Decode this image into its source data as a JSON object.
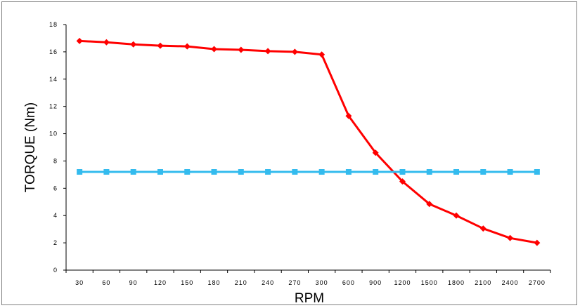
{
  "chart_data": {
    "type": "line",
    "title": "",
    "xlabel": "RPM",
    "ylabel": "TORQUE (Nm)",
    "categories": [
      "30",
      "60",
      "90",
      "120",
      "150",
      "180",
      "210",
      "240",
      "270",
      "300",
      "600",
      "900",
      "1200",
      "1500",
      "1800",
      "2100",
      "2400",
      "2700"
    ],
    "ylim": [
      0,
      18
    ],
    "yticks": [
      "0",
      "2",
      "4",
      "6",
      "8",
      "10",
      "12",
      "14",
      "16",
      "18"
    ],
    "grid": false,
    "legend": "none",
    "series": [
      {
        "color": "#ff0000",
        "marker": "diamond",
        "values": [
          16.8,
          16.7,
          16.55,
          16.45,
          16.4,
          16.2,
          16.15,
          16.05,
          16.0,
          15.8,
          11.3,
          8.6,
          6.5,
          4.85,
          4.0,
          3.05,
          2.35,
          2.0
        ]
      },
      {
        "color": "#33bbee",
        "marker": "square",
        "values": [
          7.2,
          7.2,
          7.2,
          7.2,
          7.2,
          7.2,
          7.2,
          7.2,
          7.2,
          7.2,
          7.2,
          7.2,
          7.2,
          7.2,
          7.2,
          7.2,
          7.2,
          7.2
        ]
      }
    ]
  }
}
